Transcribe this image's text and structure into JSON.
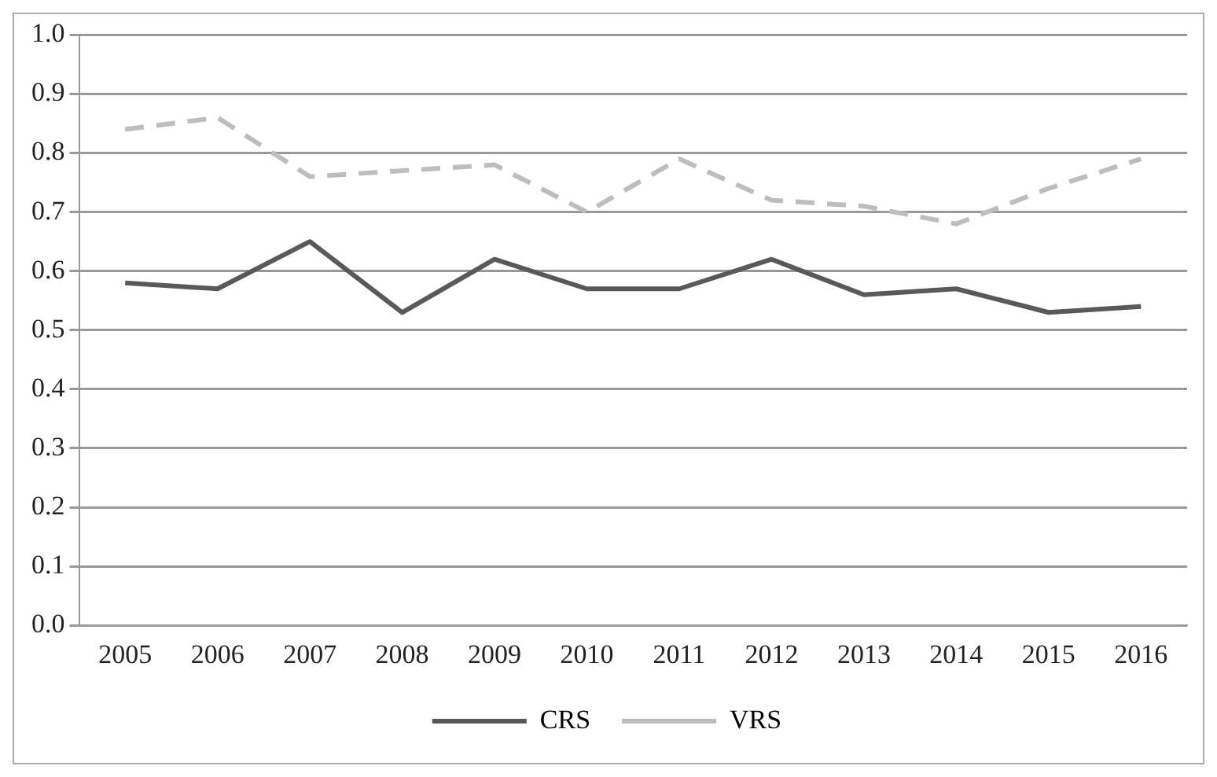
{
  "chart_data": {
    "type": "line",
    "categories": [
      "2005",
      "2006",
      "2007",
      "2008",
      "2009",
      "2010",
      "2011",
      "2012",
      "2013",
      "2014",
      "2015",
      "2016"
    ],
    "series": [
      {
        "name": "CRS",
        "color": "#595959",
        "values": [
          0.58,
          0.57,
          0.65,
          0.53,
          0.62,
          0.57,
          0.57,
          0.62,
          0.56,
          0.57,
          0.53,
          0.54
        ]
      },
      {
        "name": "VRS",
        "color": "#bdbdbd",
        "line_style": "dashed",
        "values": [
          0.84,
          0.86,
          0.76,
          0.77,
          0.78,
          0.7,
          0.79,
          0.72,
          0.71,
          0.68,
          0.74,
          0.79
        ]
      }
    ],
    "ylim": [
      0,
      1
    ],
    "yticks": [
      {
        "value": 0,
        "label": "0.0"
      },
      {
        "value": 0.1,
        "label": "0.1"
      },
      {
        "value": 0.2,
        "label": "0.2"
      },
      {
        "value": 0.3,
        "label": "0.3"
      },
      {
        "value": 0.4,
        "label": "0.4"
      },
      {
        "value": 0.5,
        "label": "0.5"
      },
      {
        "value": 0.6,
        "label": "0.6"
      },
      {
        "value": 0.7,
        "label": "0.7"
      },
      {
        "value": 0.8,
        "label": "0.8"
      },
      {
        "value": 0.9,
        "label": "0.9"
      },
      {
        "value": 1,
        "label": "1.0"
      }
    ],
    "grid": "y",
    "legend": "bottom",
    "marker": "none"
  }
}
